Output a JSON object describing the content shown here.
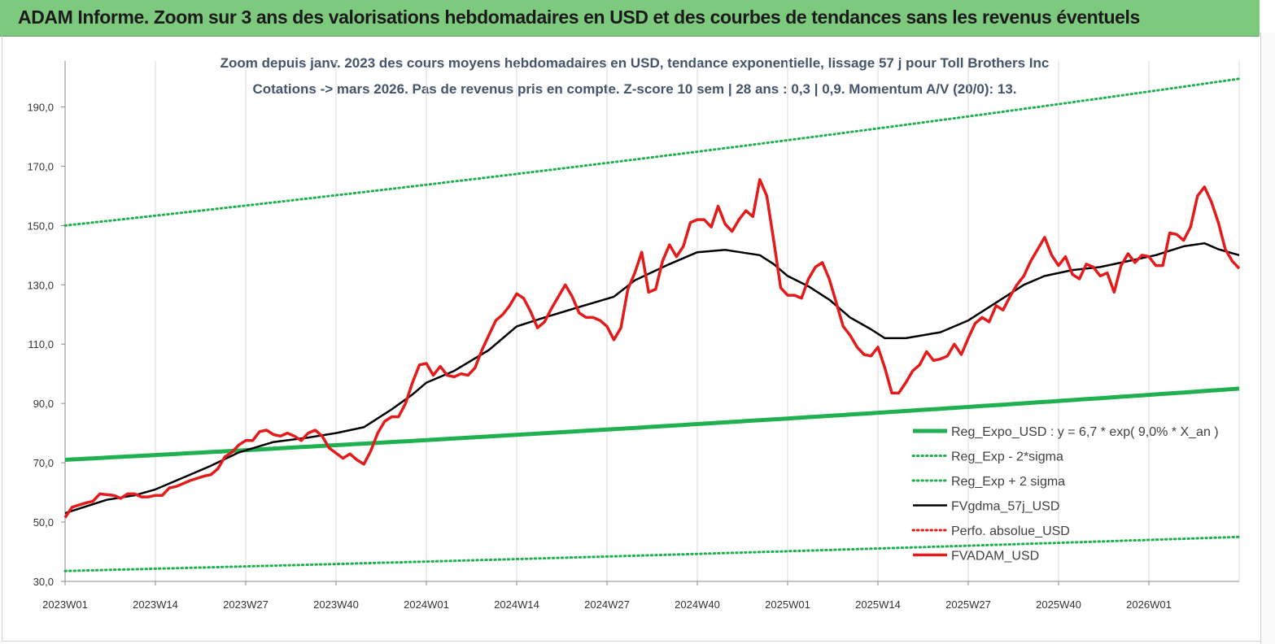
{
  "banner": {
    "title": "ADAM Informe. Zoom sur 3 ans des valorisations hebdomadaires en USD et des courbes de tendances sans les revenus éventuels",
    "bg_color": "#7dc97d"
  },
  "chart_data": {
    "type": "line",
    "title_line1": "Zoom depuis janv. 2023 des cours moyens hebdomadaires en USD, tendance exponentielle, lissage 57 j pour Toll Brothers Inc",
    "title_line2": "Cotations -> mars 2026. Pas de revenus pris en compte. Z-score 10 sem | 28 ans : 0,3 | 0,9. Momentum A/V (20/0): 13.",
    "ylim": [
      30,
      200
    ],
    "yticks": [
      "30,0",
      "50,0",
      "70,0",
      "90,0",
      "110,0",
      "130,0",
      "150,0",
      "170,0",
      "190,0"
    ],
    "xlim": [
      0,
      169
    ],
    "xticks": [
      {
        "x": 0,
        "label": "2023W01"
      },
      {
        "x": 13,
        "label": "2023W14"
      },
      {
        "x": 26,
        "label": "2023W27"
      },
      {
        "x": 39,
        "label": "2023W40"
      },
      {
        "x": 52,
        "label": "2024W01"
      },
      {
        "x": 65,
        "label": "2024W14"
      },
      {
        "x": 78,
        "label": "2024W27"
      },
      {
        "x": 91,
        "label": "2024W40"
      },
      {
        "x": 104,
        "label": "2025W01"
      },
      {
        "x": 117,
        "label": "2025W14"
      },
      {
        "x": 130,
        "label": "2025W27"
      },
      {
        "x": 143,
        "label": "2025W40"
      },
      {
        "x": 156,
        "label": "2026W01"
      }
    ],
    "grid": "vertical",
    "legend_position": "bottom-right",
    "series": [
      {
        "name": "Reg_Expo_USD : y = 6,7 * exp( 9,0% *  X_an )",
        "color": "#1fb04f",
        "style": "solid-thick",
        "points": [
          [
            0,
            71.0
          ],
          [
            169,
            95.0
          ]
        ]
      },
      {
        "name": "Reg_Exp - 2*sigma",
        "color": "#1fb04f",
        "style": "dotted",
        "points": [
          [
            0,
            33.5
          ],
          [
            169,
            45.0
          ]
        ]
      },
      {
        "name": "Reg_Exp + 2 sigma",
        "color": "#1fb04f",
        "style": "dotted",
        "points": [
          [
            0,
            150.0
          ],
          [
            169,
            199.5
          ]
        ]
      },
      {
        "name": "FVgdma_57j_USD",
        "color": "#000000",
        "style": "solid",
        "points": [
          [
            0,
            53
          ],
          [
            6,
            57.5
          ],
          [
            10,
            59
          ],
          [
            13,
            61
          ],
          [
            17,
            65
          ],
          [
            21,
            69
          ],
          [
            25,
            73.5
          ],
          [
            30,
            77
          ],
          [
            35,
            78.5
          ],
          [
            39,
            80
          ],
          [
            43,
            82
          ],
          [
            47,
            88
          ],
          [
            50,
            93
          ],
          [
            52,
            97
          ],
          [
            56,
            101
          ],
          [
            61,
            108
          ],
          [
            65,
            116
          ],
          [
            69,
            119
          ],
          [
            74,
            122.5
          ],
          [
            79,
            126
          ],
          [
            82,
            131.5
          ],
          [
            87,
            137
          ],
          [
            91,
            141
          ],
          [
            95,
            141.8
          ],
          [
            100,
            140
          ],
          [
            102,
            137
          ],
          [
            104,
            133
          ],
          [
            107,
            129.5
          ],
          [
            110,
            125
          ],
          [
            113,
            119
          ],
          [
            116,
            115
          ],
          [
            118,
            112
          ],
          [
            121,
            112
          ],
          [
            126,
            114
          ],
          [
            130,
            118
          ],
          [
            134,
            124
          ],
          [
            138,
            130
          ],
          [
            141,
            133
          ],
          [
            145,
            135
          ],
          [
            149,
            136
          ],
          [
            153,
            138
          ],
          [
            157,
            140
          ],
          [
            161,
            143
          ],
          [
            164,
            144
          ],
          [
            166,
            142
          ],
          [
            169,
            140
          ]
        ]
      },
      {
        "name": "Perfo. absolue_USD",
        "color": "#e31b1b",
        "style": "dotted",
        "points": []
      },
      {
        "name": "FVADAM_USD",
        "color": "#e31b1b",
        "style": "solid-thick",
        "points": [
          [
            0,
            51.5
          ],
          [
            1,
            55
          ],
          [
            3,
            56.5
          ],
          [
            4,
            57
          ],
          [
            5,
            59.5
          ],
          [
            7,
            59
          ],
          [
            8,
            58
          ],
          [
            9,
            59.5
          ],
          [
            10,
            59.5
          ],
          [
            11,
            58.5
          ],
          [
            12,
            58.5
          ],
          [
            13,
            59
          ],
          [
            14,
            59
          ],
          [
            15,
            61.5
          ],
          [
            16,
            62
          ],
          [
            18,
            64
          ],
          [
            20,
            65.5
          ],
          [
            21,
            66
          ],
          [
            22,
            68
          ],
          [
            23,
            72
          ],
          [
            24,
            73.5
          ],
          [
            25,
            76
          ],
          [
            26,
            77.5
          ],
          [
            27,
            77.5
          ],
          [
            28,
            80.5
          ],
          [
            29,
            81
          ],
          [
            30,
            79.5
          ],
          [
            31,
            79
          ],
          [
            32,
            80
          ],
          [
            33,
            79
          ],
          [
            34,
            77.5
          ],
          [
            35,
            80
          ],
          [
            36,
            81
          ],
          [
            37,
            79
          ],
          [
            38,
            75
          ],
          [
            40,
            71.5
          ],
          [
            41,
            73
          ],
          [
            42,
            71
          ],
          [
            43,
            69.5
          ],
          [
            44,
            74
          ],
          [
            45,
            80
          ],
          [
            46,
            84
          ],
          [
            47,
            85.5
          ],
          [
            48,
            85.5
          ],
          [
            49,
            90
          ],
          [
            50,
            97
          ],
          [
            51,
            103
          ],
          [
            52,
            103.5
          ],
          [
            53,
            99.5
          ],
          [
            54,
            102.5
          ],
          [
            55,
            99.5
          ],
          [
            56,
            99
          ],
          [
            57,
            100
          ],
          [
            58,
            99.5
          ],
          [
            59,
            102
          ],
          [
            60,
            108
          ],
          [
            61,
            113
          ],
          [
            62,
            118
          ],
          [
            63,
            120
          ],
          [
            64,
            123
          ],
          [
            65,
            127
          ],
          [
            66,
            125.5
          ],
          [
            67,
            121
          ],
          [
            68,
            115.5
          ],
          [
            69,
            117.5
          ],
          [
            70,
            122
          ],
          [
            71,
            126
          ],
          [
            72,
            130
          ],
          [
            73,
            126
          ],
          [
            74,
            120.5
          ],
          [
            75,
            119
          ],
          [
            76,
            119
          ],
          [
            77,
            118
          ],
          [
            78,
            116
          ],
          [
            79,
            111.5
          ],
          [
            80,
            115.5
          ],
          [
            81,
            128.5
          ],
          [
            82,
            134
          ],
          [
            83,
            141
          ],
          [
            84,
            127.5
          ],
          [
            85,
            128.5
          ],
          [
            86,
            138
          ],
          [
            87,
            143.5
          ],
          [
            88,
            139.5
          ],
          [
            89,
            143
          ],
          [
            90,
            151
          ],
          [
            91,
            152
          ],
          [
            92,
            152
          ],
          [
            93,
            149.5
          ],
          [
            94,
            156.5
          ],
          [
            95,
            150.5
          ],
          [
            96,
            148
          ],
          [
            97,
            152
          ],
          [
            98,
            155
          ],
          [
            99,
            153
          ],
          [
            100,
            165.5
          ],
          [
            101,
            160
          ],
          [
            102,
            145
          ],
          [
            103,
            129
          ],
          [
            104,
            126.5
          ],
          [
            105,
            126.5
          ],
          [
            106,
            125.5
          ],
          [
            107,
            132
          ],
          [
            108,
            136
          ],
          [
            109,
            137.5
          ],
          [
            110,
            132
          ],
          [
            111,
            124
          ],
          [
            112,
            116
          ],
          [
            113,
            113
          ],
          [
            114,
            109
          ],
          [
            115,
            106.5
          ],
          [
            116,
            106
          ],
          [
            117,
            109
          ],
          [
            118,
            102
          ],
          [
            119,
            93.5
          ],
          [
            120,
            93.5
          ],
          [
            121,
            97
          ],
          [
            122,
            101
          ],
          [
            123,
            103
          ],
          [
            124,
            107.5
          ],
          [
            125,
            104.5
          ],
          [
            126,
            105
          ],
          [
            127,
            106
          ],
          [
            128,
            110
          ],
          [
            129,
            106.5
          ],
          [
            130,
            112
          ],
          [
            131,
            117
          ],
          [
            132,
            119
          ],
          [
            133,
            117.5
          ],
          [
            134,
            123
          ],
          [
            135,
            121.5
          ],
          [
            136,
            126
          ],
          [
            137,
            130
          ],
          [
            138,
            133
          ],
          [
            139,
            138
          ],
          [
            140,
            142
          ],
          [
            141,
            146
          ],
          [
            142,
            140
          ],
          [
            143,
            136.5
          ],
          [
            144,
            139.5
          ],
          [
            145,
            133.5
          ],
          [
            146,
            132
          ],
          [
            147,
            137
          ],
          [
            148,
            136
          ],
          [
            149,
            133
          ],
          [
            150,
            134
          ],
          [
            151,
            127.5
          ],
          [
            152,
            136.5
          ],
          [
            153,
            140.5
          ],
          [
            154,
            137.5
          ],
          [
            155,
            140
          ],
          [
            156,
            139.5
          ],
          [
            157,
            136.5
          ],
          [
            158,
            136.5
          ],
          [
            159,
            147.5
          ],
          [
            160,
            147
          ],
          [
            161,
            145
          ],
          [
            162,
            149.5
          ],
          [
            163,
            160
          ],
          [
            164,
            163
          ],
          [
            165,
            158
          ],
          [
            166,
            151
          ],
          [
            167,
            142
          ],
          [
            168,
            138
          ],
          [
            169,
            135.5
          ]
        ]
      }
    ]
  }
}
